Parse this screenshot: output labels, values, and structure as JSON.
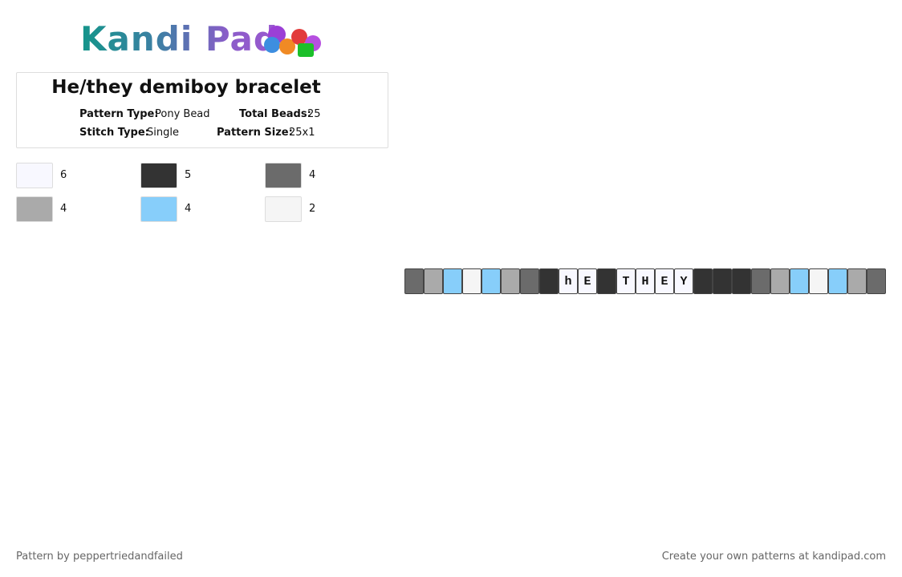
{
  "logo": {
    "text": "Kandi Pad"
  },
  "header": {
    "title": "He/they demiboy bracelet"
  },
  "info": {
    "pattern_type": {
      "label": "Pattern Type:",
      "value": "Pony Bead"
    },
    "total_beads": {
      "label": "Total Beads:",
      "value": 25
    },
    "stitch_type": {
      "label": "Stitch Type:",
      "value": "Single"
    },
    "pattern_size": {
      "label": "Pattern Size:",
      "value": "25x1"
    }
  },
  "legend": [
    {
      "color": "#f8f8ff",
      "count": 6
    },
    {
      "color": "#333333",
      "count": 5
    },
    {
      "color": "#6b6b6b",
      "count": 4
    },
    {
      "color": "#aaaaaa",
      "count": 4
    },
    {
      "color": "#87cefa",
      "count": 4
    },
    {
      "color": "#f5f5f5",
      "count": 2
    }
  ],
  "beads": [
    {
      "color": "#6b6b6b"
    },
    {
      "color": "#aaaaaa"
    },
    {
      "color": "#87cefa"
    },
    {
      "color": "#f5f5f5"
    },
    {
      "color": "#87cefa"
    },
    {
      "color": "#aaaaaa"
    },
    {
      "color": "#6b6b6b"
    },
    {
      "color": "#333333"
    },
    {
      "color": "#f8f8ff",
      "letter": "h"
    },
    {
      "color": "#f8f8ff",
      "letter": "E"
    },
    {
      "color": "#333333"
    },
    {
      "color": "#f8f8ff",
      "letter": "T"
    },
    {
      "color": "#f8f8ff",
      "letter": "H"
    },
    {
      "color": "#f8f8ff",
      "letter": "E"
    },
    {
      "color": "#f8f8ff",
      "letter": "Y"
    },
    {
      "color": "#333333"
    },
    {
      "color": "#333333"
    },
    {
      "color": "#333333"
    },
    {
      "color": "#6b6b6b"
    },
    {
      "color": "#aaaaaa"
    },
    {
      "color": "#87cefa"
    },
    {
      "color": "#f5f5f5"
    },
    {
      "color": "#87cefa"
    },
    {
      "color": "#aaaaaa"
    },
    {
      "color": "#6b6b6b"
    }
  ],
  "footer": {
    "left": "Pattern by peppertriedandfailed",
    "right": "Create your own patterns at kandipad.com"
  }
}
